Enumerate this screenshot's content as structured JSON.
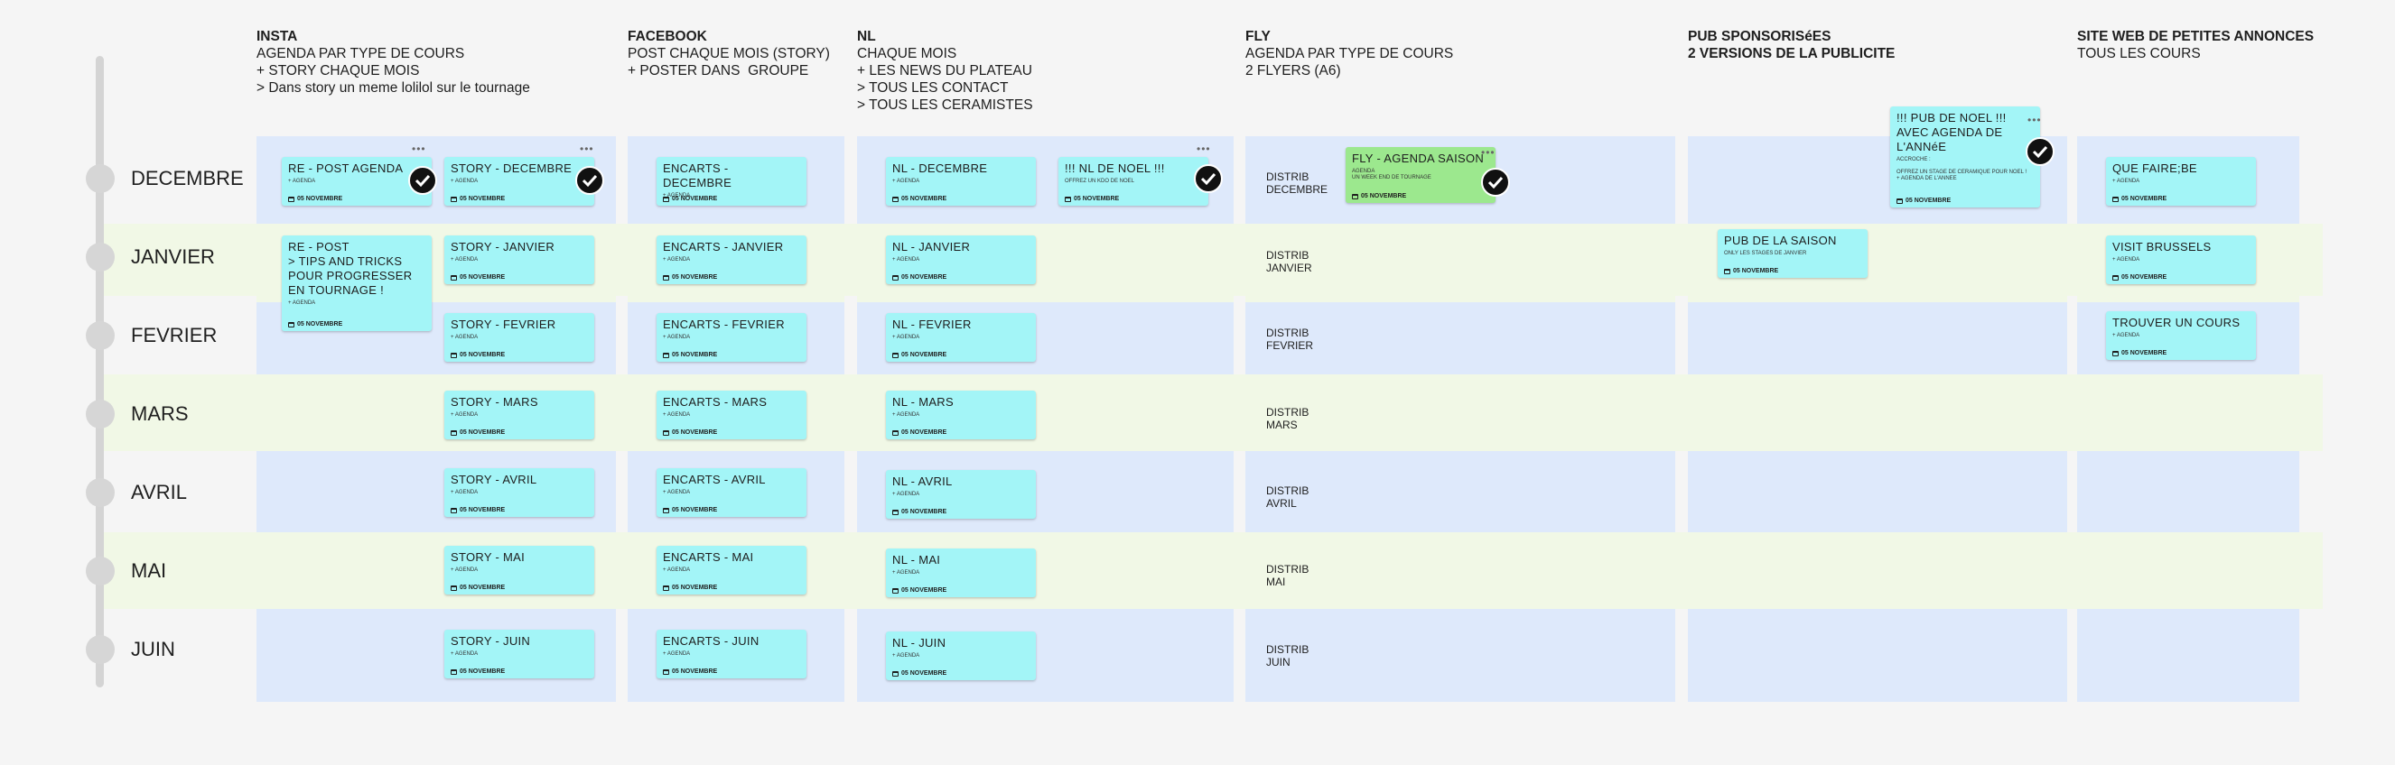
{
  "columns": [
    {
      "title": "INSTA",
      "lines": [
        "AGENDA PAR TYPE DE COURS",
        "+ STORY CHAQUE MOIS",
        "> Dans story un meme lolilol sur le tournage"
      ]
    },
    {
      "title": "FACEBOOK",
      "lines": [
        "POST CHAQUE MOIS (STORY)",
        "+ POSTER DANS  GROUPE"
      ]
    },
    {
      "title": "NL",
      "lines": [
        "CHAQUE MOIS",
        "+ LES NEWS DU PLATEAU",
        "> TOUS LES CONTACT",
        "> TOUS LES CERAMISTES"
      ]
    },
    {
      "title": "FLY",
      "lines": [
        "AGENDA PAR TYPE DE COURS",
        "2 FLYERS (A6)"
      ]
    },
    {
      "title": "PUB SPONSORISéES",
      "lines": [
        "2 VERSIONS DE LA PUBLICITE"
      ],
      "lines_bold": true
    },
    {
      "title": "SITE WEB DE PETITES ANNONCES",
      "lines": [
        "TOUS LES COURS"
      ]
    }
  ],
  "months": [
    "DECEMBRE",
    "JANVIER",
    "FEVRIER",
    "MARS",
    "AVRIL",
    "MAI",
    "JUIN"
  ],
  "card_date": "05 NOVEMBRE",
  "insta_cards": {
    "post_agenda": {
      "title": "RE - POST AGENDA",
      "sub": "+ AGENDA"
    },
    "post_tips": {
      "title": "RE - POST\n> TIPS AND TRICKS POUR PROGRESSER EN TOURNAGE !",
      "sub": "+ AGENDA"
    },
    "stories": [
      {
        "title": "STORY - DECEMBRE",
        "sub": "+ AGENDA"
      },
      {
        "title": "STORY - JANVIER",
        "sub": "+ AGENDA"
      },
      {
        "title": "STORY - FEVRIER",
        "sub": "+ AGENDA"
      },
      {
        "title": "STORY - MARS",
        "sub": "+ AGENDA"
      },
      {
        "title": "STORY - AVRIL",
        "sub": "+ AGENDA"
      },
      {
        "title": "STORY - MAI",
        "sub": "+ AGENDA"
      },
      {
        "title": "STORY - JUIN",
        "sub": "+ AGENDA"
      }
    ]
  },
  "facebook_cards": [
    {
      "title": "ENCARTS - DECEMBRE",
      "sub": "+ AGENDA"
    },
    {
      "title": "ENCARTS - JANVIER",
      "sub": "+ AGENDA"
    },
    {
      "title": "ENCARTS - FEVRIER",
      "sub": "+ AGENDA"
    },
    {
      "title": "ENCARTS - MARS",
      "sub": "+ AGENDA"
    },
    {
      "title": "ENCARTS - AVRIL",
      "sub": "+ AGENDA"
    },
    {
      "title": "ENCARTS - MAI",
      "sub": "+ AGENDA"
    },
    {
      "title": "ENCARTS - JUIN",
      "sub": "+ AGENDA"
    }
  ],
  "nl_cards": [
    {
      "title": "NL - DECEMBRE",
      "sub": "+ AGENDA"
    },
    {
      "title": "NL - JANVIER",
      "sub": "+ AGENDA"
    },
    {
      "title": "NL - FEVRIER",
      "sub": "+ AGENDA"
    },
    {
      "title": "NL - MARS",
      "sub": "+ AGENDA"
    },
    {
      "title": "NL - AVRIL",
      "sub": "+ AGENDA"
    },
    {
      "title": "NL - MAI",
      "sub": "+ AGENDA"
    },
    {
      "title": "NL - JUIN",
      "sub": "+ AGENDA"
    }
  ],
  "nl_noel": {
    "title": "!!! NL DE NOEL !!!",
    "sub": "OFFREZ UN KDO DE NOEL"
  },
  "fly_card": {
    "title": "FLY - AGENDA SAISON",
    "sub": "AGENDA\nUN WEEK END DE TOURNAGE"
  },
  "distrib": [
    [
      "DISTRIB",
      "DECEMBRE"
    ],
    [
      "DISTRIB",
      "JANVIER"
    ],
    [
      "DISTRIB",
      "FEVRIER"
    ],
    [
      "DISTRIB",
      "MARS"
    ],
    [
      "DISTRIB",
      "AVRIL"
    ],
    [
      "DISTRIB",
      "MAI"
    ],
    [
      "DISTRIB",
      "JUIN"
    ]
  ],
  "pub_saison": {
    "title": "PUB DE LA SAISON",
    "sub": "ONLY LES STAGES DE JANVIER"
  },
  "pub_noel": {
    "title": "!!! PUB DE NOEL !!!\nAVEC AGENDA DE L'ANNéE",
    "sub": "ACCROCHE :\n\nOFFREZ UN STAGE DE CERAMIQUE POUR NOEL !\n+ AGENDA DE L'ANNEE"
  },
  "site_cards": [
    {
      "title": "QUE FAIRE;BE",
      "sub": "+ AGENDA"
    },
    {
      "title": "VISIT BRUSSELS",
      "sub": "+ AGENDA"
    },
    {
      "title": "TROUVER UN COURS",
      "sub": "+ AGENDA"
    }
  ],
  "colors": {
    "card": "#a3f5f7",
    "card_green": "#9ce88e",
    "panel": "#dee9fb",
    "band": "#f1f8e6",
    "background": "#f5f5f5"
  },
  "icons": [
    "calendar-icon",
    "check-icon",
    "more-dots-icon"
  ]
}
